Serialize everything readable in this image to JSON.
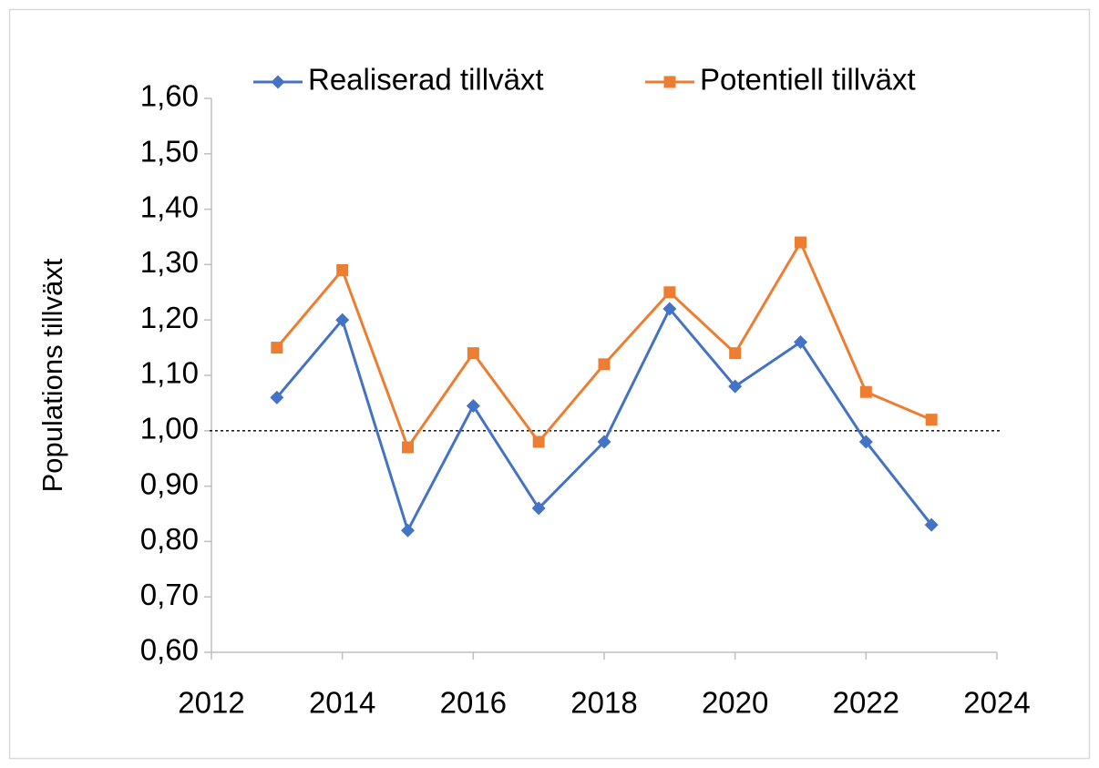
{
  "chart_data": {
    "type": "line",
    "y_label": "Populations tillväxt",
    "x": [
      2013,
      2014,
      2015,
      2016,
      2017,
      2018,
      2019,
      2020,
      2021,
      2022,
      2023
    ],
    "series": [
      {
        "name": "Realiserad tillväxt",
        "color": "#4472c4",
        "marker": "diamond",
        "values": [
          1.06,
          1.2,
          0.82,
          1.045,
          0.86,
          0.98,
          1.22,
          1.08,
          1.16,
          0.98,
          0.83
        ]
      },
      {
        "name": "Potentiell tillväxt",
        "color": "#ed7d31",
        "marker": "square",
        "values": [
          1.15,
          1.29,
          0.97,
          1.14,
          0.98,
          1.12,
          1.25,
          1.14,
          1.34,
          1.07,
          1.02
        ]
      }
    ],
    "xlim": [
      2012,
      2024
    ],
    "xticks": [
      2012,
      2014,
      2016,
      2018,
      2020,
      2022,
      2024
    ],
    "ylim": [
      0.6,
      1.6
    ],
    "yticks": [
      {
        "value": 0.6,
        "label": "0,60"
      },
      {
        "value": 0.7,
        "label": "0,70"
      },
      {
        "value": 0.8,
        "label": "0,80"
      },
      {
        "value": 0.9,
        "label": "0,90"
      },
      {
        "value": 1.0,
        "label": "1,00"
      },
      {
        "value": 1.1,
        "label": "1,10"
      },
      {
        "value": 1.2,
        "label": "1,20"
      },
      {
        "value": 1.3,
        "label": "1,30"
      },
      {
        "value": 1.4,
        "label": "1,40"
      },
      {
        "value": 1.5,
        "label": "1,50"
      },
      {
        "value": 1.6,
        "label": "1,60"
      }
    ],
    "reference_line": 1.0,
    "grid": false,
    "legend": "top"
  }
}
